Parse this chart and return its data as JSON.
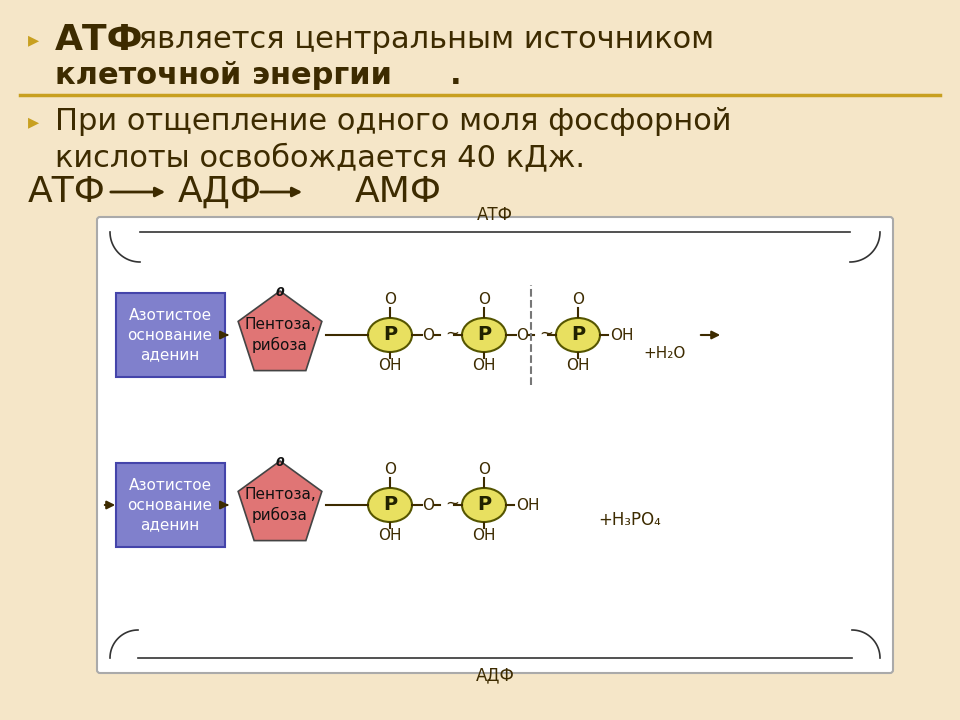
{
  "bg_color": "#f5e6c8",
  "diagram_bg": "#ffffff",
  "text_color": "#3d2b00",
  "bullet_color": "#c8a020",
  "line_color": "#c8a020",
  "atf_label": "АТФ",
  "adf_label": "АДФ",
  "box_blue_color": "#8080cc",
  "box_blue_text": "Азотистое\nоснование\nаденин",
  "pentagon_color": "#e07575",
  "pentagon_text": "Пентоза,\nрибоза",
  "circle_color": "#e8e060",
  "circle_border": "#555500",
  "diagram_border": "#aaaaaa",
  "brace_color": "#333333",
  "dashed_color": "#777777",
  "arrow_color": "#111111"
}
